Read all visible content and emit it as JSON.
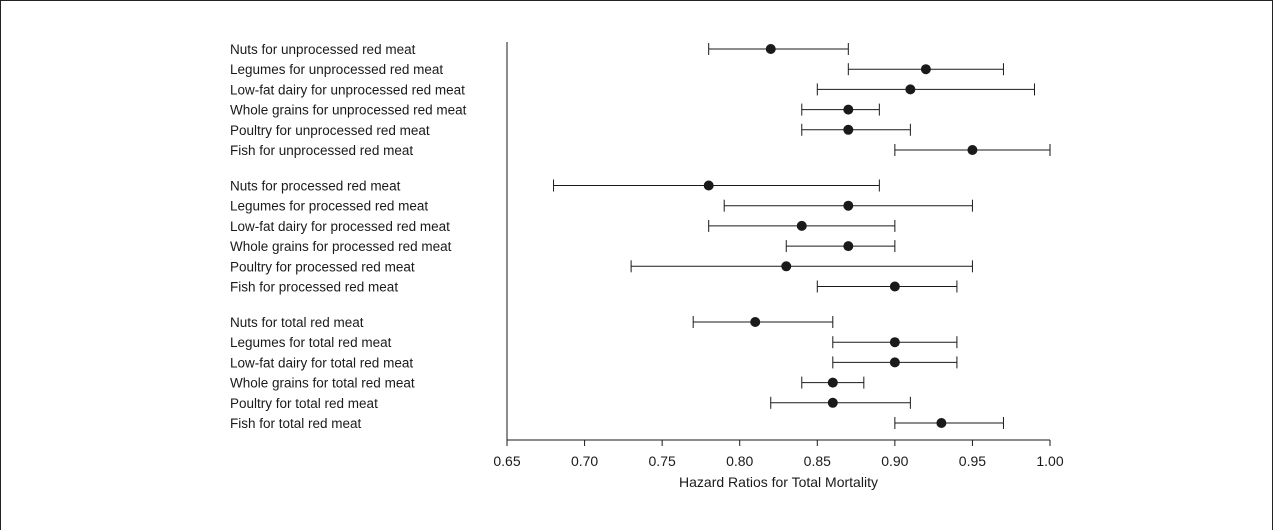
{
  "chart_data": {
    "type": "forest",
    "xlabel": "Hazard Ratios for Total Mortality",
    "xlim": [
      0.65,
      1.0
    ],
    "xticks": [
      "0.65",
      "0.70",
      "0.75",
      "0.80",
      "0.85",
      "0.90",
      "0.95",
      "1.00"
    ],
    "groups": [
      {
        "rows": [
          {
            "label": "Nuts for unprocessed red meat",
            "hr": 0.82,
            "lo": 0.78,
            "hi": 0.87
          },
          {
            "label": "Legumes for unprocessed red meat",
            "hr": 0.92,
            "lo": 0.87,
            "hi": 0.97
          },
          {
            "label": "Low-fat dairy for unprocessed red meat",
            "hr": 0.91,
            "lo": 0.85,
            "hi": 0.99
          },
          {
            "label": "Whole grains for unprocessed red meat",
            "hr": 0.87,
            "lo": 0.84,
            "hi": 0.89
          },
          {
            "label": "Poultry for unprocessed red meat",
            "hr": 0.87,
            "lo": 0.84,
            "hi": 0.91
          },
          {
            "label": "Fish for unprocessed red meat",
            "hr": 0.95,
            "lo": 0.9,
            "hi": 1.0
          }
        ]
      },
      {
        "rows": [
          {
            "label": "Nuts for processed red meat",
            "hr": 0.78,
            "lo": 0.68,
            "hi": 0.89
          },
          {
            "label": "Legumes for processed red meat",
            "hr": 0.87,
            "lo": 0.79,
            "hi": 0.95
          },
          {
            "label": "Low-fat dairy for processed red meat",
            "hr": 0.84,
            "lo": 0.78,
            "hi": 0.9
          },
          {
            "label": "Whole grains for processed red meat",
            "hr": 0.87,
            "lo": 0.83,
            "hi": 0.9
          },
          {
            "label": "Poultry for processed red meat",
            "hr": 0.83,
            "lo": 0.73,
            "hi": 0.95
          },
          {
            "label": "Fish for processed red meat",
            "hr": 0.9,
            "lo": 0.85,
            "hi": 0.94
          }
        ]
      },
      {
        "rows": [
          {
            "label": "Nuts for total red meat",
            "hr": 0.81,
            "lo": 0.77,
            "hi": 0.86
          },
          {
            "label": "Legumes for total red meat",
            "hr": 0.9,
            "lo": 0.86,
            "hi": 0.94
          },
          {
            "label": "Low-fat dairy for total red meat",
            "hr": 0.9,
            "lo": 0.86,
            "hi": 0.94
          },
          {
            "label": "Whole grains for total red meat",
            "hr": 0.86,
            "lo": 0.84,
            "hi": 0.88
          },
          {
            "label": "Poultry for total red meat",
            "hr": 0.86,
            "lo": 0.82,
            "hi": 0.91
          },
          {
            "label": "Fish for total red meat",
            "hr": 0.93,
            "lo": 0.9,
            "hi": 0.97
          }
        ]
      }
    ],
    "colors": {
      "marker": "#1a1a1a",
      "line": "#1a1a1a",
      "text": "#1a1a1a"
    }
  }
}
